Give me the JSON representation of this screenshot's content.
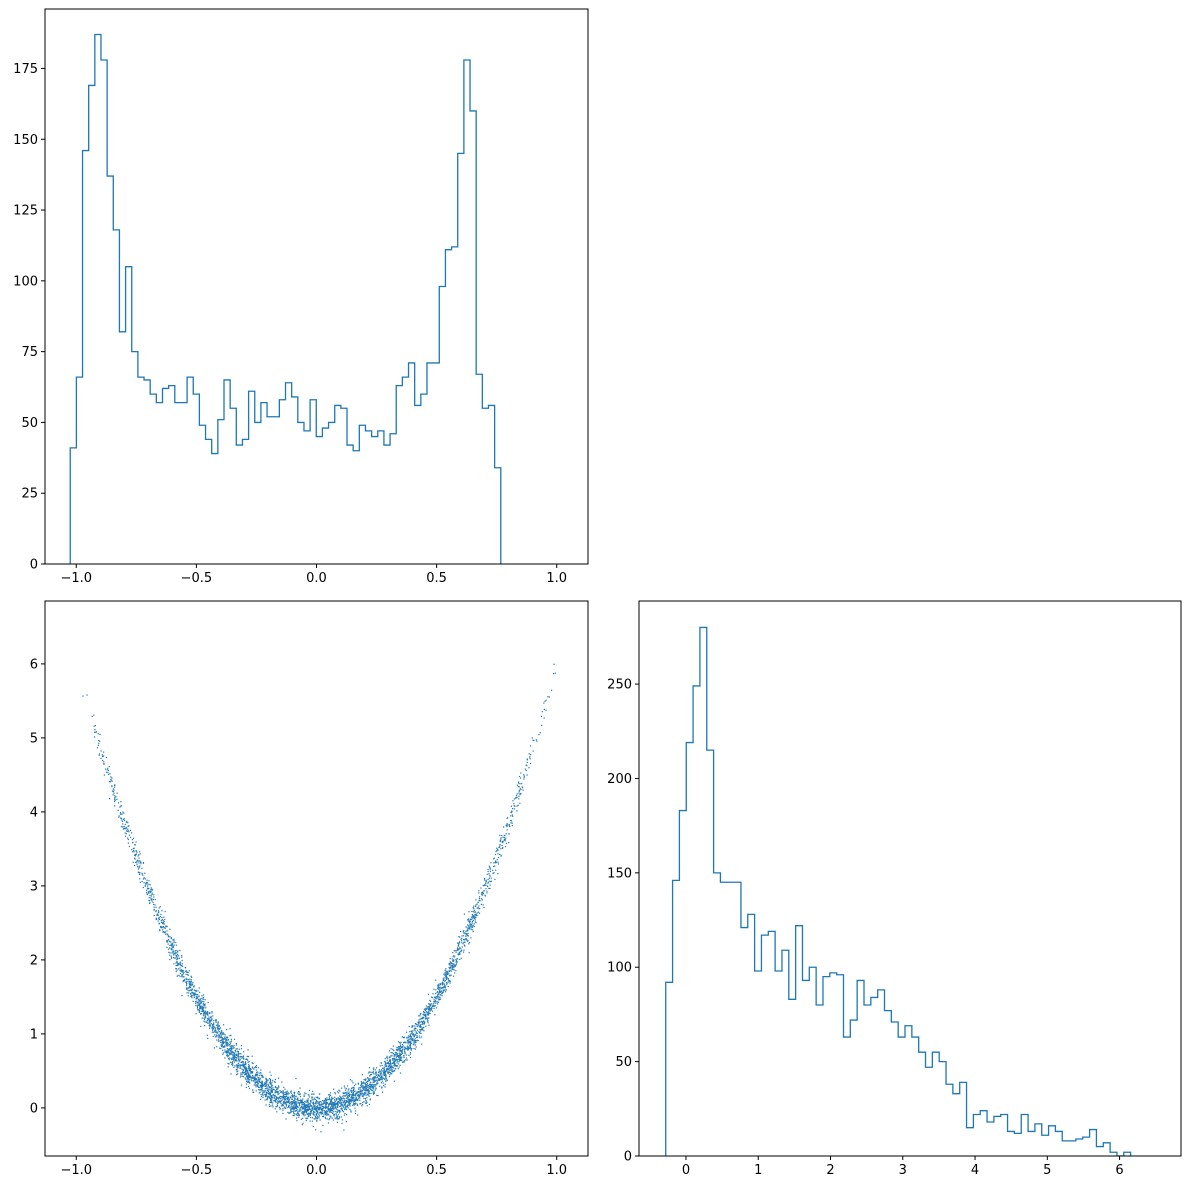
{
  "chart_data": [
    {
      "panel": "top-left",
      "type": "histogram-step",
      "title": "",
      "xlabel": "",
      "ylabel": "",
      "xlim": [
        -1.13,
        1.13
      ],
      "ylim": [
        0,
        196
      ],
      "xticks": [
        -1.0,
        -0.5,
        0.0,
        0.5,
        1.0
      ],
      "xtick_labels": [
        "−1.0",
        "−0.5",
        "0.0",
        "0.5",
        "1.0"
      ],
      "yticks": [
        0,
        25,
        50,
        75,
        100,
        125,
        150,
        175
      ],
      "ytick_labels": [
        "0",
        "25",
        "50",
        "75",
        "100",
        "125",
        "150",
        "175"
      ],
      "bin_start": -1.025,
      "bin_width": 0.0256,
      "counts": [
        41,
        66,
        146,
        169,
        187,
        178,
        137,
        118,
        82,
        105,
        75,
        66,
        65,
        60,
        57,
        62,
        63,
        57,
        57,
        66,
        60,
        49,
        44,
        39,
        51,
        65,
        55,
        42,
        44,
        61,
        50,
        57,
        52,
        52,
        58,
        64,
        59,
        50,
        47,
        58,
        45,
        48,
        50,
        56,
        55,
        42,
        40,
        49,
        47,
        45,
        47,
        42,
        46,
        63,
        66,
        71,
        56,
        60,
        71,
        71,
        98,
        111,
        112,
        145,
        178,
        160,
        67,
        55,
        56,
        34
      ],
      "color": "#1f77b4"
    },
    {
      "panel": "bottom-left",
      "type": "scatter",
      "title": "",
      "xlabel": "",
      "ylabel": "",
      "xlim": [
        -1.13,
        1.13
      ],
      "ylim": [
        -0.65,
        6.85
      ],
      "xticks": [
        -1.0,
        -0.5,
        0.0,
        0.5,
        1.0
      ],
      "xtick_labels": [
        "−1.0",
        "−0.5",
        "0.0",
        "0.5",
        "1.0"
      ],
      "yticks": [
        0,
        1,
        2,
        3,
        4,
        5,
        6
      ],
      "ytick_labels": [
        "0",
        "1",
        "2",
        "3",
        "4",
        "5",
        "6"
      ],
      "point_count": 4000,
      "relation": "y ≈ 6·x² + noise",
      "color": "#1f77b4"
    },
    {
      "panel": "bottom-right",
      "type": "histogram-step",
      "title": "",
      "xlabel": "",
      "ylabel": "",
      "xlim": [
        -0.65,
        6.85
      ],
      "ylim": [
        0,
        294
      ],
      "xticks": [
        0,
        1,
        2,
        3,
        4,
        5,
        6
      ],
      "xtick_labels": [
        "0",
        "1",
        "2",
        "3",
        "4",
        "5",
        "6"
      ],
      "yticks": [
        0,
        50,
        100,
        150,
        200,
        250
      ],
      "ytick_labels": [
        "0",
        "50",
        "100",
        "150",
        "200",
        "250"
      ],
      "bin_start": -0.28,
      "bin_width": 0.0946,
      "counts": [
        92,
        146,
        183,
        219,
        249,
        280,
        215,
        150,
        145,
        145,
        145,
        121,
        128,
        98,
        117,
        119,
        98,
        109,
        83,
        122,
        93,
        100,
        80,
        95,
        97,
        96,
        63,
        72,
        93,
        80,
        84,
        88,
        77,
        71,
        63,
        69,
        63,
        55,
        47,
        55,
        50,
        38,
        33,
        39,
        15,
        22,
        24,
        18,
        21,
        22,
        13,
        12,
        22,
        13,
        17,
        11,
        16,
        13,
        8,
        8,
        9,
        10,
        14,
        5,
        7,
        2,
        0,
        2
      ]
    }
  ]
}
